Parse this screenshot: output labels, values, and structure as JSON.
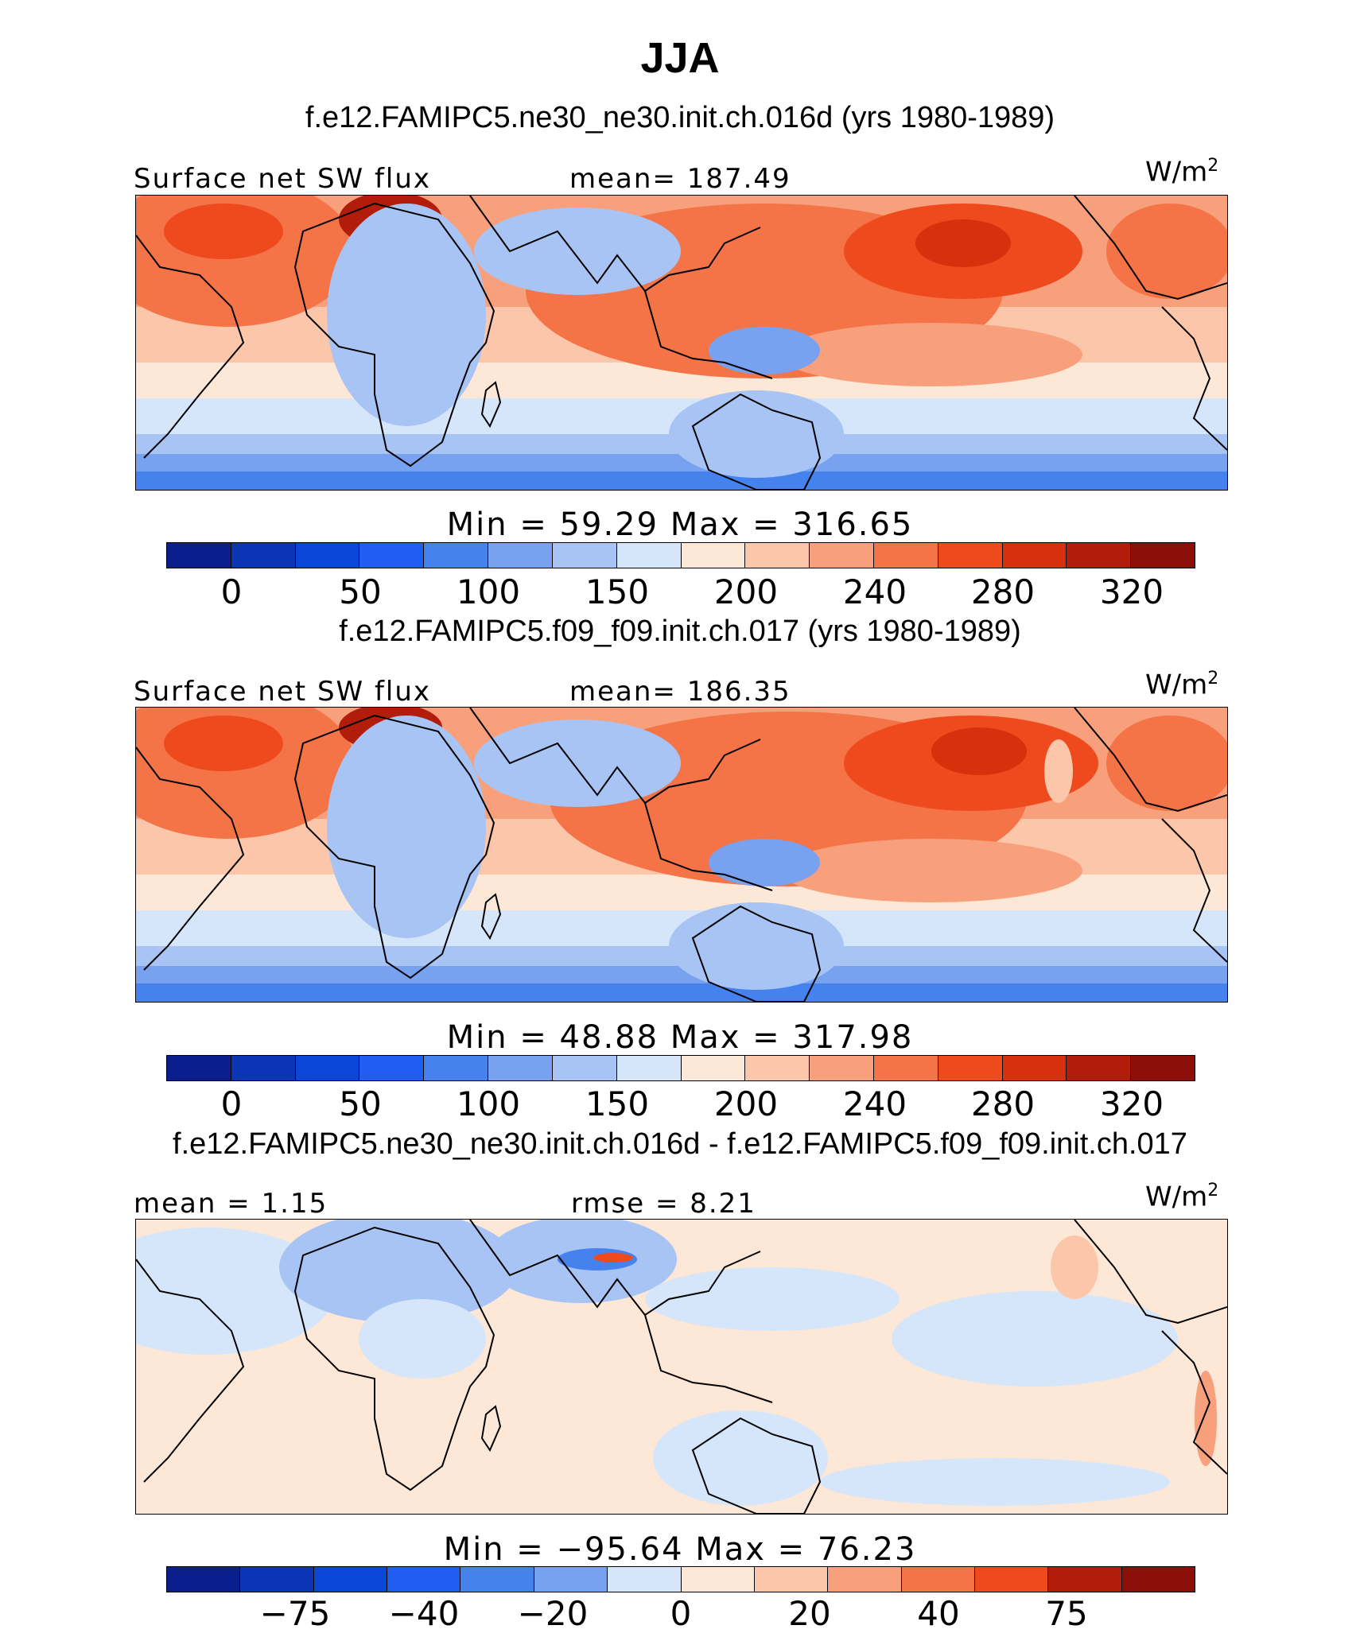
{
  "title": "JJA",
  "colors": {
    "sequential": [
      "#0a1e8c",
      "#0b35b4",
      "#0a46d8",
      "#1f5ef0",
      "#4682ee",
      "#78a2f0",
      "#a8c4f4",
      "#d6e6fa",
      "#fde7d6",
      "#fbc6aa",
      "#f8a07c",
      "#f47448",
      "#ef4a1e",
      "#d7300c",
      "#b21d0b",
      "#8c0f0a"
    ],
    "land": "#000000"
  },
  "panels": [
    {
      "run_title": "f.e12.FAMIPC5.ne30_ne30.init.ch.016d (yrs 1980-1989)",
      "left_label": "Surface net SW flux",
      "center_label": "mean= 187.49",
      "units": "W/m",
      "units_sup": "2",
      "minmax": "Min =   59.29 Max = 316.65",
      "ticks": [
        "0",
        "50",
        "100",
        "150",
        "200",
        "240",
        "280",
        "320"
      ]
    },
    {
      "run_title": "f.e12.FAMIPC5.f09_f09.init.ch.017 (yrs 1980-1989)",
      "left_label": "Surface net SW flux",
      "center_label": "mean= 186.35",
      "units": "W/m",
      "units_sup": "2",
      "minmax": "Min =   48.88 Max = 317.98",
      "ticks": [
        "0",
        "50",
        "100",
        "150",
        "200",
        "240",
        "280",
        "320"
      ]
    },
    {
      "run_title": "f.e12.FAMIPC5.ne30_ne30.init.ch.016d - f.e12.FAMIPC5.f09_f09.init.ch.017",
      "left_label": "mean =    1.15",
      "center_label": "rmse =    8.21",
      "units": "W/m",
      "units_sup": "2",
      "minmax": "Min = −95.64 Max =   76.23",
      "ticks": [
        "−75",
        "−40",
        "−20",
        "0",
        "20",
        "40",
        "75"
      ]
    }
  ]
}
